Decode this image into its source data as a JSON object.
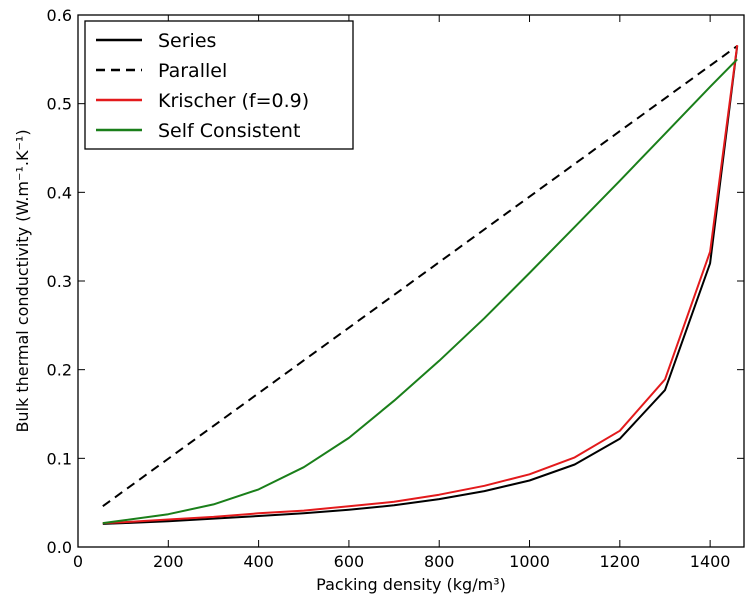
{
  "chart_data": {
    "type": "line",
    "title": "",
    "xlabel": "Packing density (kg/m³)",
    "ylabel": "Bulk thermal conductivity (W.m⁻¹.K⁻¹)",
    "xlim": [
      0,
      1475
    ],
    "ylim": [
      0,
      0.6
    ],
    "xticks": [
      0,
      200,
      400,
      600,
      800,
      1000,
      1200,
      1400
    ],
    "yticks": [
      0.0,
      0.1,
      0.2,
      0.3,
      0.4,
      0.5,
      0.6
    ],
    "grid": false,
    "legend_position": "top-left",
    "series": [
      {
        "name": "Series",
        "color": "#000000",
        "style": "solid",
        "x": [
          55,
          100,
          200,
          300,
          400,
          500,
          600,
          700,
          800,
          900,
          1000,
          1100,
          1200,
          1300,
          1400,
          1460
        ],
        "y": [
          0.026,
          0.027,
          0.029,
          0.032,
          0.035,
          0.038,
          0.042,
          0.047,
          0.054,
          0.063,
          0.075,
          0.093,
          0.122,
          0.177,
          0.32,
          0.565
        ]
      },
      {
        "name": "Parallel",
        "color": "#000000",
        "style": "dashed",
        "x": [
          55,
          1460
        ],
        "y": [
          0.046,
          0.565
        ]
      },
      {
        "name": "Krischer (f=0.9)",
        "color": "#e31a1c",
        "style": "solid",
        "x": [
          55,
          100,
          200,
          300,
          400,
          500,
          600,
          700,
          800,
          900,
          1000,
          1100,
          1200,
          1300,
          1400,
          1460
        ],
        "y": [
          0.027,
          0.028,
          0.031,
          0.034,
          0.038,
          0.041,
          0.046,
          0.051,
          0.059,
          0.069,
          0.082,
          0.101,
          0.131,
          0.189,
          0.333,
          0.566
        ]
      },
      {
        "name": "Self Consistent",
        "color": "#1a7f1a",
        "style": "solid",
        "x": [
          55,
          100,
          200,
          300,
          400,
          500,
          600,
          700,
          800,
          900,
          1000,
          1100,
          1200,
          1300,
          1400,
          1460
        ],
        "y": [
          0.027,
          0.03,
          0.037,
          0.048,
          0.065,
          0.09,
          0.123,
          0.165,
          0.21,
          0.258,
          0.309,
          0.361,
          0.413,
          0.466,
          0.519,
          0.55
        ]
      }
    ]
  }
}
